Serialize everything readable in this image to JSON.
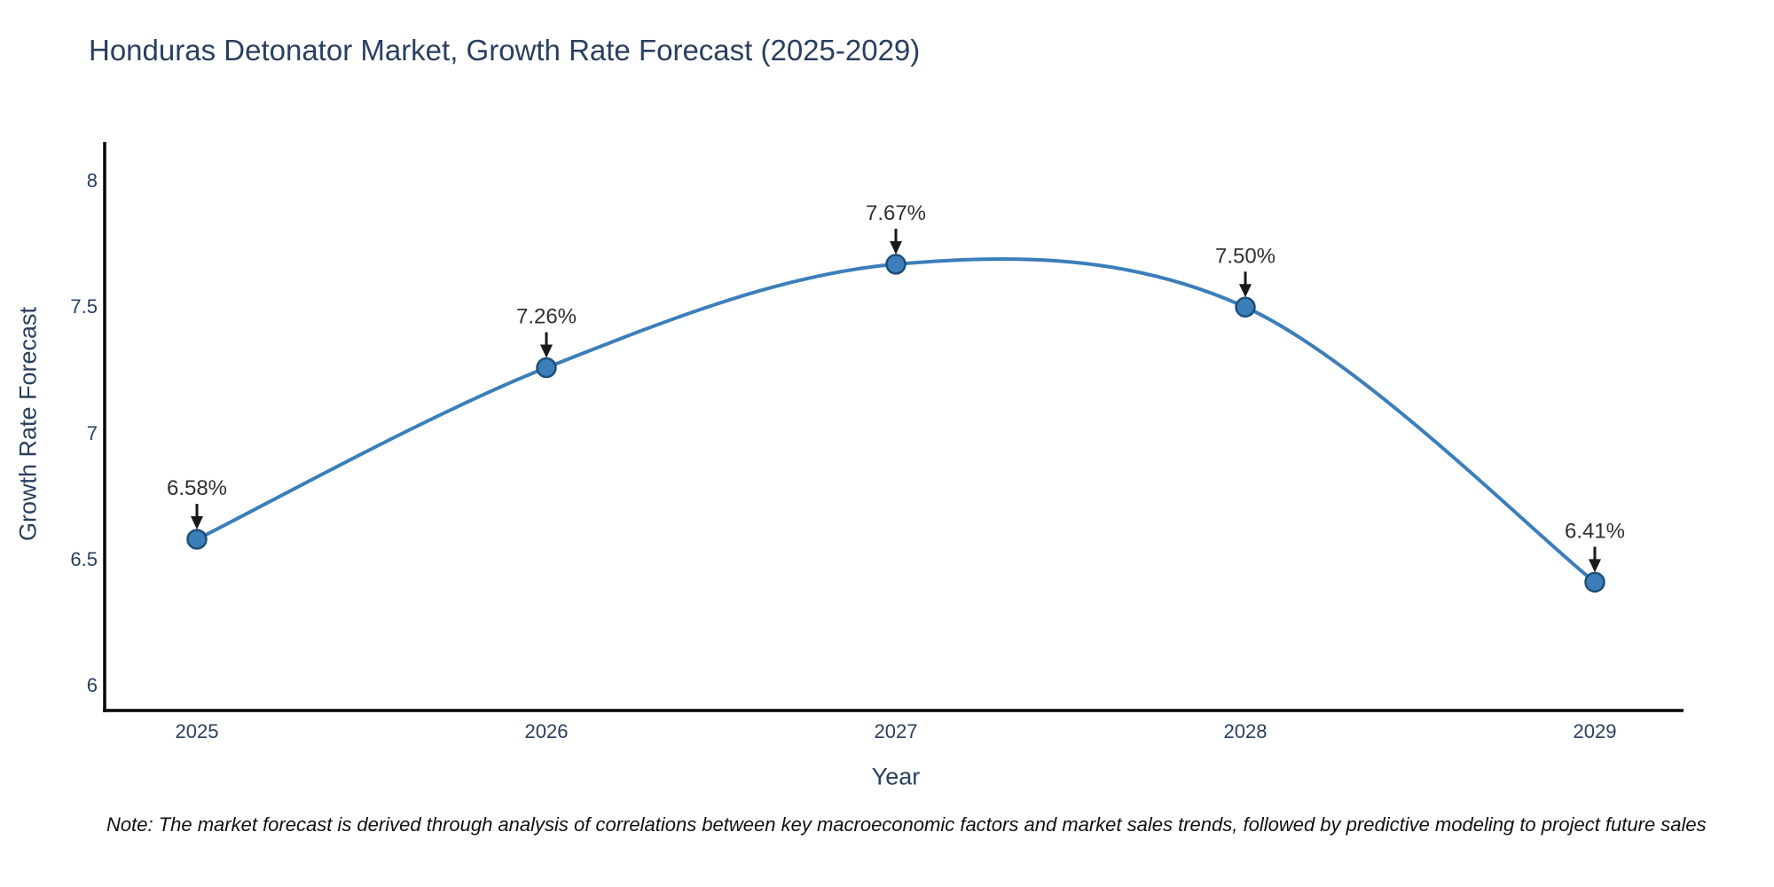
{
  "page": {
    "background_color": "#ffffff"
  },
  "chart_data": {
    "type": "line",
    "title": "Honduras Detonator Market, Growth Rate Forecast (2025-2029)",
    "xlabel": "Year",
    "ylabel": "Growth Rate Forecast",
    "x": [
      2025,
      2026,
      2027,
      2028,
      2029
    ],
    "y": [
      6.58,
      7.26,
      7.67,
      7.5,
      6.41
    ],
    "point_labels": [
      "6.58%",
      "7.26%",
      "7.67%",
      "7.50%",
      "6.41%"
    ],
    "xtick_labels": [
      "2025",
      "2026",
      "2027",
      "2028",
      "2029"
    ],
    "yticks": [
      6,
      6.5,
      7,
      7.5,
      8
    ],
    "ytick_labels": [
      "6",
      "6.5",
      "7",
      "7.5",
      "8"
    ],
    "ylim": [
      5.9,
      8.16
    ],
    "xlim": [
      2024.74,
      2029.25
    ],
    "grid": false,
    "legend": false,
    "line_shape": "spline",
    "line_color": "#3b7eba",
    "marker_fill_color": "#3b7eba",
    "marker_edge_color": "#1f4e79",
    "arrow_color": "#1a1a1a",
    "axis_color": "#000000",
    "tick_text_color": "#2a3f5f",
    "annotation_text_color": "#303030"
  },
  "note": {
    "text": "Note: The market forecast is derived through analysis of correlations between key macroeconomic factors and market sales trends, followed by predictive modeling to project future sales"
  }
}
